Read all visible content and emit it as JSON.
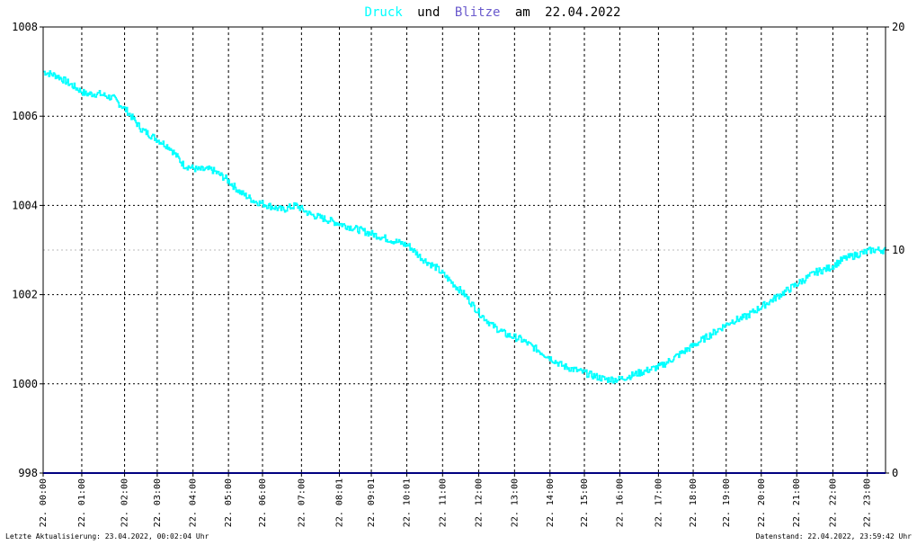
{
  "chart_data": {
    "type": "line",
    "title": {
      "series1": "Druck",
      "conj": "und",
      "series2": "Blitze",
      "prep": "am",
      "date": "22.04.2022"
    },
    "left_axis": {
      "ylim": [
        998,
        1008
      ],
      "ticks": [
        "998",
        "1000",
        "1002",
        "1004",
        "1006",
        "1008"
      ]
    },
    "right_axis": {
      "ylim": [
        0,
        20
      ],
      "ticks": [
        "0",
        "10",
        "20"
      ]
    },
    "x_ticks": [
      {
        "h": 0.0,
        "label": "22. 00:00"
      },
      {
        "h": 1.1,
        "label": "22. 01:00"
      },
      {
        "h": 2.32,
        "label": "22. 02:00"
      },
      {
        "h": 3.25,
        "label": "22. 03:00"
      },
      {
        "h": 4.27,
        "label": "22. 04:00"
      },
      {
        "h": 5.28,
        "label": "22. 05:00"
      },
      {
        "h": 6.25,
        "label": "22. 06:00"
      },
      {
        "h": 7.36,
        "label": "22. 07:00"
      },
      {
        "h": 8.44,
        "label": "22. 08:01"
      },
      {
        "h": 9.35,
        "label": "22. 09:01"
      },
      {
        "h": 10.36,
        "label": "22. 10:01"
      },
      {
        "h": 11.38,
        "label": "22. 11:00"
      },
      {
        "h": 12.41,
        "label": "22. 12:00"
      },
      {
        "h": 13.43,
        "label": "22. 13:00"
      },
      {
        "h": 14.44,
        "label": "22. 14:00"
      },
      {
        "h": 15.42,
        "label": "22. 15:00"
      },
      {
        "h": 16.43,
        "label": "22. 16:00"
      },
      {
        "h": 17.53,
        "label": "22. 17:00"
      },
      {
        "h": 18.52,
        "label": "22. 18:00"
      },
      {
        "h": 19.46,
        "label": "22. 19:00"
      },
      {
        "h": 20.46,
        "label": "22. 20:00"
      },
      {
        "h": 21.47,
        "label": "22. 21:00"
      },
      {
        "h": 22.5,
        "label": "22. 22:00"
      },
      {
        "h": 23.48,
        "label": "22. 23:00"
      }
    ],
    "xlim": [
      0,
      24
    ],
    "series": [
      {
        "name": "Druck",
        "color": "#00ffff",
        "x": [
          0,
          0.4,
          0.8,
          1.2,
          1.6,
          2.0,
          2.4,
          2.8,
          3.2,
          3.6,
          4.0,
          4.4,
          4.8,
          5.2,
          5.6,
          6.0,
          6.4,
          6.8,
          7.2,
          7.6,
          8.0,
          8.4,
          8.8,
          9.2,
          9.6,
          10.0,
          10.4,
          10.8,
          11.2,
          11.6,
          12.0,
          12.4,
          12.8,
          13.2,
          13.6,
          14.0,
          14.4,
          14.8,
          15.2,
          15.6,
          16.0,
          16.4,
          16.8,
          17.2,
          17.6,
          18.0,
          18.4,
          18.8,
          19.2,
          19.6,
          20.0,
          20.4,
          20.8,
          21.2,
          21.6,
          22.0,
          22.4,
          22.8,
          23.2,
          23.6,
          24.0
        ],
        "values": [
          1007.0,
          1006.9,
          1006.7,
          1006.5,
          1006.5,
          1006.4,
          1006.1,
          1005.7,
          1005.5,
          1005.3,
          1004.9,
          1004.8,
          1004.8,
          1004.6,
          1004.3,
          1004.1,
          1004.0,
          1003.9,
          1004.0,
          1003.8,
          1003.7,
          1003.6,
          1003.5,
          1003.4,
          1003.3,
          1003.2,
          1003.1,
          1002.8,
          1002.6,
          1002.3,
          1002.0,
          1001.6,
          1001.3,
          1001.1,
          1001.0,
          1000.8,
          1000.6,
          1000.4,
          1000.3,
          1000.2,
          1000.1,
          1000.1,
          1000.2,
          1000.3,
          1000.4,
          1000.6,
          1000.8,
          1001.0,
          1001.2,
          1001.4,
          1001.5,
          1001.7,
          1001.9,
          1002.1,
          1002.3,
          1002.5,
          1002.6,
          1002.8,
          1002.9,
          1003.0,
          1003.0
        ]
      },
      {
        "name": "Blitze",
        "color": "#000080",
        "x": [
          0,
          24
        ],
        "values": [
          0,
          0
        ]
      }
    ],
    "grid": true
  },
  "footer": {
    "left": "Letzte Aktualisierung: 23.04.2022, 00:02:04 Uhr",
    "right": "Datenstand: 22.04.2022, 23:59:42 Uhr"
  },
  "colors": {
    "druck": "#00ffff",
    "blitze": "#6a5acd",
    "title_text": "#000000",
    "axis": "#000000",
    "grid": "#000000",
    "baseline": "#000080"
  }
}
